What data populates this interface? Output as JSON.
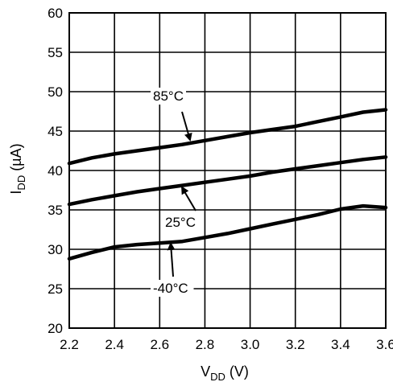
{
  "chart_data": {
    "type": "line",
    "title": "",
    "xlabel": {
      "main": "V",
      "sub": "DD",
      "unit": " (V)"
    },
    "ylabel": {
      "main": "I",
      "sub": "DD",
      "unit": " (µA)"
    },
    "xlim": [
      2.2,
      3.6
    ],
    "ylim": [
      20,
      60
    ],
    "xticks": [
      "2.2",
      "2.4",
      "2.6",
      "2.8",
      "3.0",
      "3.2",
      "3.4",
      "3.6"
    ],
    "yticks": [
      "20",
      "25",
      "30",
      "35",
      "40",
      "45",
      "50",
      "55",
      "60"
    ],
    "grid": true,
    "series": [
      {
        "name": "85°C",
        "x": [
          2.2,
          2.3,
          2.4,
          2.5,
          2.6,
          2.7,
          2.8,
          2.9,
          3.0,
          3.1,
          3.2,
          3.3,
          3.4,
          3.5,
          3.6
        ],
        "y": [
          40.9,
          41.6,
          42.1,
          42.5,
          42.9,
          43.3,
          43.8,
          44.3,
          44.8,
          45.2,
          45.6,
          46.2,
          46.8,
          47.4,
          47.7
        ]
      },
      {
        "name": "25°C",
        "x": [
          2.2,
          2.3,
          2.4,
          2.5,
          2.6,
          2.7,
          2.8,
          2.9,
          3.0,
          3.1,
          3.2,
          3.3,
          3.4,
          3.5,
          3.6
        ],
        "y": [
          35.7,
          36.3,
          36.8,
          37.3,
          37.7,
          38.1,
          38.5,
          38.9,
          39.3,
          39.8,
          40.2,
          40.6,
          41.0,
          41.4,
          41.7
        ]
      },
      {
        "name": "-40°C",
        "x": [
          2.2,
          2.3,
          2.4,
          2.5,
          2.6,
          2.7,
          2.8,
          2.9,
          3.0,
          3.1,
          3.2,
          3.3,
          3.4,
          3.5,
          3.6
        ],
        "y": [
          28.8,
          29.6,
          30.3,
          30.6,
          30.8,
          31.0,
          31.5,
          32.0,
          32.6,
          33.2,
          33.8,
          34.4,
          35.1,
          35.5,
          35.3
        ]
      }
    ],
    "annotations": [
      {
        "text": "85°C",
        "series": "85°C"
      },
      {
        "text": "25°C",
        "series": "25°C"
      },
      {
        "text": "-40°C",
        "series": "-40°C"
      }
    ]
  }
}
